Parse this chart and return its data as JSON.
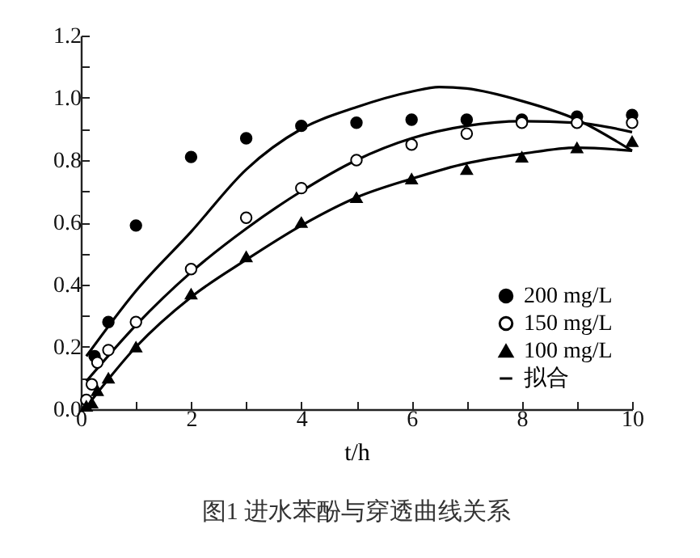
{
  "chart_data": {
    "type": "scatter",
    "title": "图1  进水苯酚与穿透曲线关系",
    "xlabel": "t/h",
    "legend": "bottom right",
    "grid": false,
    "xlim": [
      0,
      10
    ],
    "ylim": [
      0,
      1.2
    ],
    "xticks": [
      0,
      {
        "value": 1,
        "label": null
      },
      2,
      {
        "value": 3,
        "label": null
      },
      4,
      {
        "value": 5,
        "label": null
      },
      6,
      {
        "value": 7,
        "label": null
      },
      8,
      {
        "value": 9,
        "label": null
      },
      10
    ],
    "yticks": [
      {
        "value": 0,
        "label": "0.0"
      },
      {
        "value": 0.1,
        "label": null
      },
      {
        "value": 0.2,
        "label": "0.2"
      },
      {
        "value": 0.3,
        "label": null
      },
      {
        "value": 0.4,
        "label": "0.4"
      },
      {
        "value": 0.5,
        "label": null
      },
      {
        "value": 0.6,
        "label": "0.6"
      },
      {
        "value": 0.7,
        "label": null
      },
      {
        "value": 0.8,
        "label": "0.8"
      },
      {
        "value": 0.9,
        "label": null
      },
      {
        "value": 1,
        "label": "1.0"
      },
      {
        "value": 1.1,
        "label": null
      },
      {
        "value": 1.2,
        "label": "1.2"
      }
    ],
    "series": [
      {
        "type": "scatter",
        "name": "200 mg/L",
        "color": "#000000",
        "marker": "circle",
        "x": [
          0.25,
          0.5,
          1,
          2,
          3,
          4,
          5,
          6,
          7,
          8,
          9,
          10
        ],
        "values": [
          0.17,
          0.28,
          0.59,
          0.81,
          0.87,
          0.91,
          0.92,
          0.93,
          0.93,
          0.93,
          0.94,
          0.945
        ]
      },
      {
        "type": "scatter",
        "name": "150 mg/L",
        "color": "#ffffff",
        "marker": "circle",
        "x": [
          0.1,
          0.2,
          0.3,
          0.5,
          1,
          2,
          3,
          4,
          5,
          6,
          7,
          8,
          9,
          10
        ],
        "values": [
          0.03,
          0.08,
          0.15,
          0.19,
          0.28,
          0.45,
          0.615,
          0.71,
          0.8,
          0.85,
          0.885,
          0.92,
          0.92,
          0.92
        ]
      },
      {
        "type": "scatter",
        "name": "100 mg/L",
        "color": "#000000",
        "marker": "triangle",
        "x": [
          0.1,
          0.2,
          0.3,
          0.5,
          1,
          2,
          3,
          4,
          5,
          6,
          7,
          8,
          9,
          10
        ],
        "values": [
          0.01,
          0.02,
          0.06,
          0.1,
          0.2,
          0.37,
          0.49,
          0.6,
          0.68,
          0.74,
          0.77,
          0.81,
          0.84,
          0.86
        ]
      },
      {
        "type": "line",
        "name": "拟合",
        "color": "#000000",
        "x": [
          0.1,
          1,
          2,
          3,
          4,
          5,
          6,
          6.5,
          7,
          8,
          9,
          10
        ],
        "values": [
          0.17,
          0.38,
          0.57,
          0.77,
          0.9,
          0.97,
          1.02,
          1.035,
          1.03,
          0.99,
          0.93,
          0.83
        ]
      },
      {
        "type": "line",
        "color": "#000000",
        "x": [
          0.1,
          1,
          2,
          3,
          4,
          5,
          6,
          7,
          8,
          9,
          10
        ],
        "values": [
          0.09,
          0.27,
          0.44,
          0.58,
          0.7,
          0.8,
          0.87,
          0.91,
          0.925,
          0.92,
          0.89
        ]
      },
      {
        "type": "line",
        "color": "#000000",
        "x": [
          0.2,
          1,
          2,
          3,
          4,
          5,
          6,
          7,
          8,
          9,
          10
        ],
        "values": [
          0.03,
          0.2,
          0.36,
          0.48,
          0.59,
          0.68,
          0.74,
          0.79,
          0.82,
          0.84,
          0.83
        ]
      }
    ]
  }
}
